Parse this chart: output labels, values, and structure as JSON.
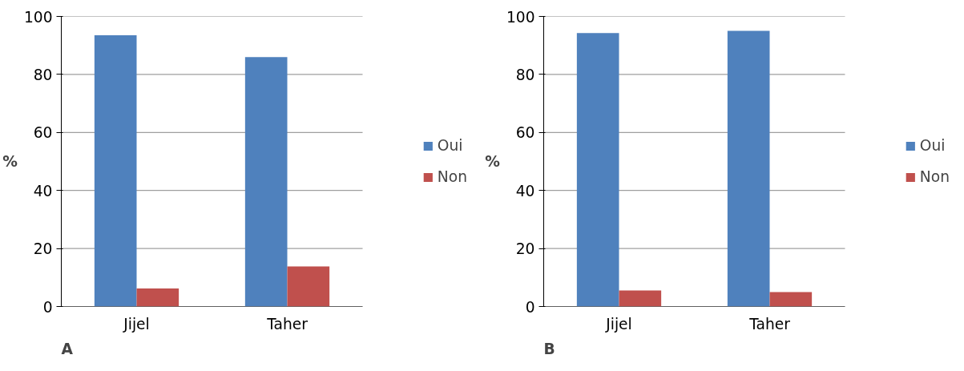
{
  "chart_data": [
    {
      "type": "bar",
      "ylabel": "%",
      "categories": [
        "Jijel",
        "Taher"
      ],
      "ylim": [
        0,
        100
      ],
      "yticks": [
        0,
        20,
        40,
        60,
        80,
        100
      ],
      "grid": "y",
      "legend": "right",
      "annotations": [
        "A"
      ],
      "series": [
        {
          "name": "Oui",
          "color": "#4f81bd",
          "values": [
            93.5,
            86
          ]
        },
        {
          "name": "Non",
          "color": "#c0504d",
          "values": [
            6.2,
            13.8
          ]
        }
      ]
    },
    {
      "type": "bar",
      "ylabel": "%",
      "categories": [
        "Jijel",
        "Taher"
      ],
      "ylim": [
        0,
        100
      ],
      "yticks": [
        0,
        20,
        40,
        60,
        80,
        100
      ],
      "grid": "y",
      "legend": "right",
      "annotations": [
        "B"
      ],
      "series": [
        {
          "name": "Oui",
          "color": "#4f81bd",
          "values": [
            94.3,
            95
          ]
        },
        {
          "name": "Non",
          "color": "#c0504d",
          "values": [
            5.5,
            5
          ]
        }
      ]
    }
  ]
}
